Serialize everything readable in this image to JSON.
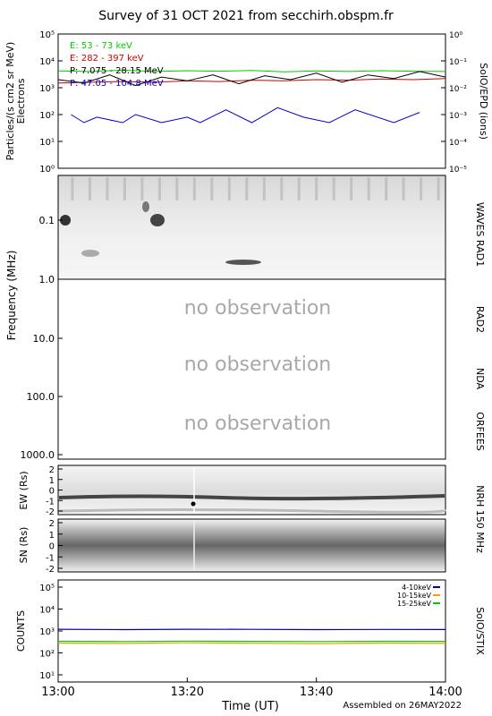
{
  "title": "Survey of 31 OCT 2021 from secchirh.obspm.fr",
  "footer": "Assembled on 26MAY2022",
  "time_axis": {
    "label": "Time (UT)",
    "ticks": [
      "13:00",
      "13:20",
      "13:40",
      "14:00"
    ],
    "range_minutes": [
      0,
      60
    ],
    "tick_minutes": [
      0,
      20,
      40,
      60
    ]
  },
  "no_observation_text": "no observation",
  "chart_data": [
    {
      "type": "line",
      "panel": "SolO/EPD",
      "right_label": "SolO/EPD (ions)",
      "ylabel": "Particles/(s cm2 sr MeV)",
      "ylabel2": "Electrons",
      "yscale": "log",
      "ylim": [
        1,
        100000
      ],
      "y_ticks": [
        "10⁰",
        "10¹",
        "10²",
        "10³",
        "10⁴",
        "10⁵"
      ],
      "y2lim": [
        1e-05,
        1
      ],
      "y2_ticks": [
        "10⁻⁵",
        "10⁻⁴",
        "10⁻³",
        "10⁻²",
        "10⁻¹",
        "10⁰"
      ],
      "series": [
        {
          "name": "E: 53 - 73 keV",
          "color": "#00cc00",
          "axis": "left",
          "x": [
            0,
            5,
            10,
            15,
            20,
            25,
            30,
            35,
            40,
            45,
            50,
            55,
            60
          ],
          "values": [
            4200,
            4000,
            4500,
            4000,
            4300,
            4100,
            4400,
            3900,
            4200,
            4000,
            4300,
            4100,
            4000
          ]
        },
        {
          "name": "E: 282 - 397 keV",
          "color": "#cc0000",
          "axis": "left",
          "x": [
            0,
            5,
            10,
            15,
            20,
            25,
            30,
            35,
            40,
            45,
            50,
            55,
            60
          ],
          "values": [
            1500,
            1600,
            1700,
            1600,
            1800,
            1700,
            1900,
            1800,
            2000,
            1900,
            2100,
            2000,
            2200
          ]
        },
        {
          "name": "P: 7.075 - 28.15 MeV",
          "color": "#000000",
          "axis": "right",
          "x": [
            0,
            4,
            8,
            12,
            16,
            20,
            24,
            28,
            32,
            36,
            40,
            44,
            48,
            52,
            56,
            60
          ],
          "values": [
            0.02,
            0.015,
            0.03,
            0.012,
            0.025,
            0.018,
            0.03,
            0.014,
            0.028,
            0.02,
            0.035,
            0.016,
            0.03,
            0.022,
            0.04,
            0.025
          ]
        },
        {
          "name": "P: 47.05 - 104.8 MeV",
          "color": "#0000cc",
          "axis": "right",
          "x": [
            2,
            4,
            6,
            10,
            12,
            16,
            20,
            22,
            26,
            30,
            34,
            38,
            42,
            46,
            52,
            56
          ],
          "values": [
            0.001,
            0.0005,
            0.0008,
            0.0005,
            0.001,
            0.0005,
            0.0008,
            0.0005,
            0.0015,
            0.0005,
            0.0018,
            0.0008,
            0.0005,
            0.0015,
            0.0005,
            0.0012
          ]
        }
      ]
    },
    {
      "type": "heatmap",
      "panel": "WAVES RAD1",
      "right_label": "WAVES RAD1",
      "ylabel": "Frequency (MHz)",
      "y_ticks": [
        "0.1",
        "1.0",
        "10.0",
        "100.0",
        "1000.0"
      ],
      "right_labels_lower": [
        "RAD2",
        "NDA",
        "ORFEES"
      ]
    },
    {
      "type": "heatmap",
      "panel": "NRH 150 MHz",
      "right_label": "NRH 150 MHz",
      "sub_panels": [
        {
          "ylabel": "EW (Rs)",
          "y_ticks": [
            "2",
            "1",
            "0",
            "-1",
            "-2"
          ]
        },
        {
          "ylabel": "SN (Rs)",
          "y_ticks": [
            "2",
            "1",
            "0",
            "-1",
            "-2"
          ]
        }
      ]
    },
    {
      "type": "line",
      "panel": "SolO/STIX",
      "right_label": "SolO/STIX",
      "ylabel": "COUNTS",
      "yscale": "log",
      "ylim": [
        10,
        100000
      ],
      "y_ticks": [
        "10¹",
        "10²",
        "10³",
        "10⁴",
        "10⁵"
      ],
      "series": [
        {
          "name": "4-10keV",
          "color": "#0000aa",
          "x": [
            0,
            10,
            20,
            30,
            40,
            50,
            60
          ],
          "values": [
            1200,
            1150,
            1200,
            1180,
            1150,
            1170,
            1160
          ]
        },
        {
          "name": "10-15keV",
          "color": "#ff9900",
          "x": [
            0,
            10,
            20,
            30,
            40,
            50,
            60
          ],
          "values": [
            280,
            270,
            290,
            275,
            265,
            280,
            270
          ]
        },
        {
          "name": "15-25keV",
          "color": "#00cc00",
          "x": [
            0,
            10,
            20,
            30,
            40,
            50,
            60
          ],
          "values": [
            340,
            330,
            345,
            335,
            330,
            340,
            335
          ]
        }
      ]
    }
  ]
}
